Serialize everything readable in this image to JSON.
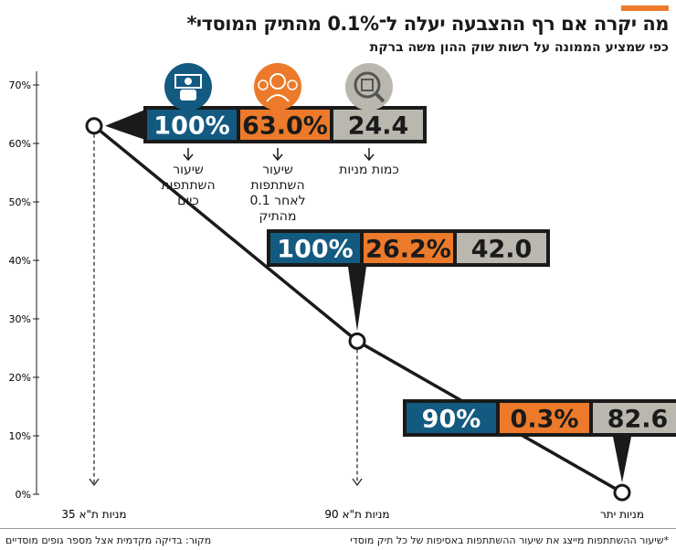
{
  "header": {
    "title": "מה יקרה אם רף ההצבעה יעלה ל־0.1% מהתיק המוסדי*",
    "subtitle": "כפי שמציע הממונה על רשות שוק ההון משה ברקת"
  },
  "colors": {
    "accent": "#ec7a2a",
    "participation_now": "#135a80",
    "participation_after": "#ec7a2a",
    "stock_count": "#b9b7ae",
    "line": "#1a1a1a"
  },
  "legend": [
    {
      "icon": "money-hand-icon",
      "color": "#135a80",
      "lines": [
        "שיעור",
        "השתתפות",
        "כיום"
      ]
    },
    {
      "icon": "people-group-icon",
      "color": "#ec7a2a",
      "lines": [
        "שיעור",
        "השתתפות",
        "לאחר 0.1",
        "מהתיק"
      ]
    },
    {
      "icon": "magnifier-shekel-icon",
      "color": "#b9b7ae",
      "lines": [
        "כמות מניות"
      ]
    }
  ],
  "chart_data": {
    "type": "line",
    "categories": [
      "מניות ת\"א 35",
      "מניות ת\"א 90",
      "מניות יתר"
    ],
    "series": [
      {
        "values": [
          63.0,
          26.2,
          0.3
        ]
      }
    ],
    "yticks": [
      "70%",
      "60%",
      "50%",
      "40%",
      "30%",
      "20%",
      "10%",
      "0%"
    ],
    "ylim": [
      0,
      70
    ],
    "callouts": [
      {
        "participation_now": "100%",
        "participation_after": "63.0%",
        "stock_count": "24.4"
      },
      {
        "participation_now": "100%",
        "participation_after": "26.2%",
        "stock_count": "42.0"
      },
      {
        "participation_now": "90%",
        "participation_after": "0.3%",
        "stock_count": "82.6"
      }
    ]
  },
  "footer": {
    "note": "*שיעור ההשתתפות מייצג את שיעור ההשתתפות באסיפות של כל תיק מוסדי",
    "source": "מקור: בדיקה מקדמית אצל מספר גופים מוסדיים"
  }
}
